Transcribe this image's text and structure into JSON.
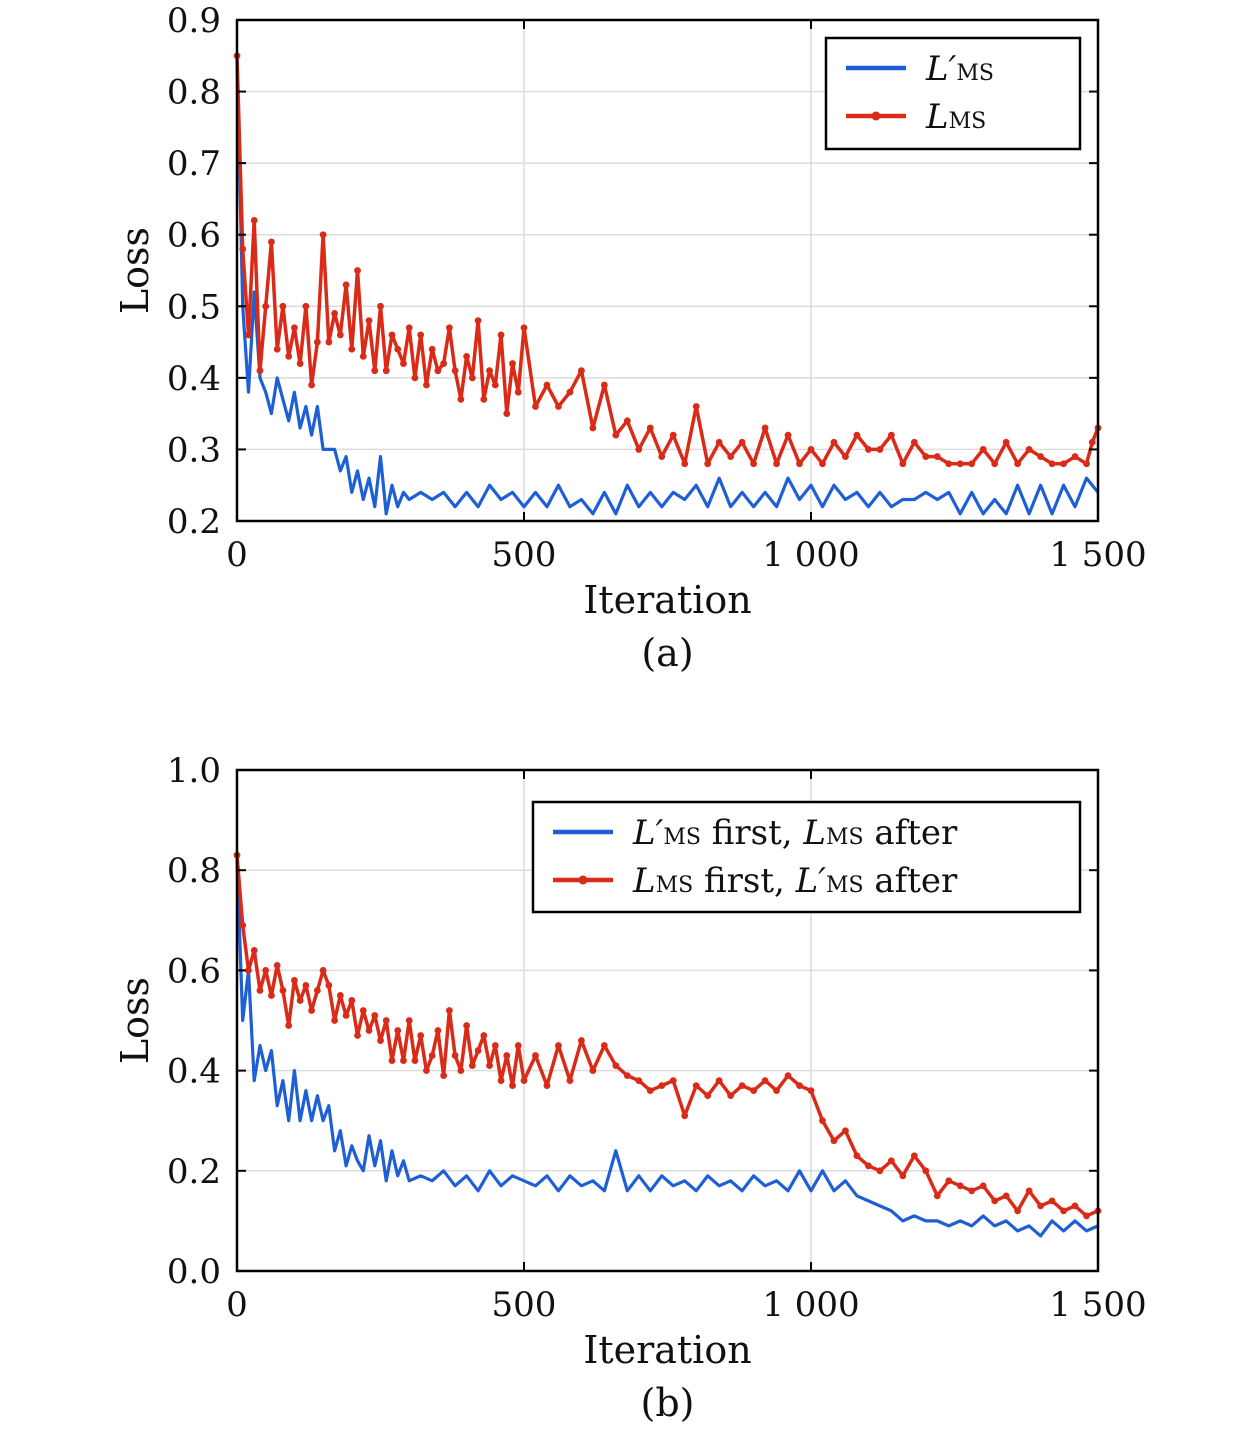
{
  "chart_data": [
    {
      "type": "line",
      "caption": "(a)",
      "xlabel": "Iteration",
      "ylabel": "Loss",
      "xlim": [
        0,
        1500
      ],
      "ylim": [
        0.2,
        0.9
      ],
      "xticks": [
        0,
        500,
        1000,
        1500
      ],
      "xtick_labels": [
        "0",
        "500",
        "1 000",
        "1 500"
      ],
      "yticks": [
        0.2,
        0.3,
        0.4,
        0.5,
        0.6,
        0.7,
        0.8,
        0.9
      ],
      "ytick_labels": [
        "0.2",
        "0.3",
        "0.4",
        "0.5",
        "0.6",
        "0.7",
        "0.8",
        "0.9"
      ],
      "grid": true,
      "legend_position": "top-right",
      "series": [
        {
          "name_main": "L′",
          "name_sub": "MS",
          "name_tail": "",
          "color": "#1f5fd6",
          "markers": false,
          "x": [
            0,
            10,
            20,
            30,
            40,
            50,
            60,
            70,
            80,
            90,
            100,
            110,
            120,
            130,
            140,
            150,
            160,
            170,
            180,
            190,
            200,
            210,
            220,
            230,
            240,
            250,
            260,
            270,
            280,
            290,
            300,
            320,
            340,
            360,
            380,
            400,
            420,
            440,
            460,
            480,
            500,
            520,
            540,
            560,
            580,
            600,
            620,
            640,
            660,
            680,
            700,
            720,
            740,
            760,
            780,
            800,
            820,
            840,
            860,
            880,
            900,
            920,
            940,
            960,
            980,
            1000,
            1020,
            1040,
            1060,
            1080,
            1100,
            1120,
            1140,
            1160,
            1180,
            1200,
            1220,
            1240,
            1260,
            1280,
            1300,
            1320,
            1340,
            1360,
            1380,
            1400,
            1420,
            1440,
            1460,
            1480,
            1500
          ],
          "y": [
            0.85,
            0.5,
            0.38,
            0.52,
            0.4,
            0.38,
            0.35,
            0.4,
            0.37,
            0.34,
            0.38,
            0.33,
            0.36,
            0.32,
            0.36,
            0.3,
            0.3,
            0.3,
            0.27,
            0.29,
            0.24,
            0.27,
            0.23,
            0.26,
            0.22,
            0.29,
            0.21,
            0.25,
            0.22,
            0.24,
            0.23,
            0.24,
            0.23,
            0.24,
            0.22,
            0.24,
            0.22,
            0.25,
            0.23,
            0.24,
            0.22,
            0.24,
            0.22,
            0.25,
            0.22,
            0.23,
            0.21,
            0.24,
            0.21,
            0.25,
            0.22,
            0.24,
            0.22,
            0.24,
            0.23,
            0.25,
            0.22,
            0.26,
            0.22,
            0.24,
            0.22,
            0.24,
            0.22,
            0.26,
            0.23,
            0.25,
            0.22,
            0.25,
            0.23,
            0.24,
            0.22,
            0.24,
            0.22,
            0.23,
            0.23,
            0.24,
            0.23,
            0.24,
            0.21,
            0.24,
            0.21,
            0.23,
            0.21,
            0.25,
            0.21,
            0.25,
            0.21,
            0.25,
            0.22,
            0.26,
            0.24
          ]
        },
        {
          "name_main": "L",
          "name_sub": "MS",
          "name_tail": "",
          "color": "#d92b17",
          "markers": true,
          "x": [
            0,
            10,
            20,
            30,
            40,
            50,
            60,
            70,
            80,
            90,
            100,
            110,
            120,
            130,
            140,
            150,
            160,
            170,
            180,
            190,
            200,
            210,
            220,
            230,
            240,
            250,
            260,
            270,
            280,
            290,
            300,
            310,
            320,
            330,
            340,
            350,
            360,
            370,
            380,
            390,
            400,
            410,
            420,
            430,
            440,
            450,
            460,
            470,
            480,
            490,
            500,
            520,
            540,
            560,
            580,
            600,
            620,
            640,
            660,
            680,
            700,
            720,
            740,
            760,
            780,
            800,
            820,
            840,
            860,
            880,
            900,
            920,
            940,
            960,
            980,
            1000,
            1020,
            1040,
            1060,
            1080,
            1100,
            1120,
            1140,
            1160,
            1180,
            1200,
            1220,
            1240,
            1260,
            1280,
            1300,
            1320,
            1340,
            1360,
            1380,
            1400,
            1420,
            1440,
            1460,
            1480,
            1490,
            1500
          ],
          "y": [
            0.85,
            0.58,
            0.46,
            0.62,
            0.41,
            0.5,
            0.59,
            0.44,
            0.5,
            0.43,
            0.47,
            0.42,
            0.5,
            0.39,
            0.45,
            0.6,
            0.45,
            0.49,
            0.46,
            0.53,
            0.44,
            0.55,
            0.43,
            0.48,
            0.41,
            0.5,
            0.41,
            0.46,
            0.44,
            0.42,
            0.47,
            0.4,
            0.46,
            0.39,
            0.44,
            0.41,
            0.42,
            0.47,
            0.41,
            0.37,
            0.43,
            0.4,
            0.48,
            0.37,
            0.41,
            0.39,
            0.46,
            0.35,
            0.42,
            0.38,
            0.47,
            0.36,
            0.39,
            0.36,
            0.38,
            0.41,
            0.33,
            0.39,
            0.32,
            0.34,
            0.3,
            0.33,
            0.29,
            0.32,
            0.28,
            0.36,
            0.28,
            0.31,
            0.29,
            0.31,
            0.28,
            0.33,
            0.28,
            0.32,
            0.28,
            0.3,
            0.28,
            0.31,
            0.29,
            0.32,
            0.3,
            0.3,
            0.32,
            0.28,
            0.31,
            0.29,
            0.29,
            0.28,
            0.28,
            0.28,
            0.3,
            0.28,
            0.31,
            0.28,
            0.3,
            0.29,
            0.28,
            0.28,
            0.29,
            0.28,
            0.31,
            0.33
          ]
        }
      ]
    },
    {
      "type": "line",
      "caption": "(b)",
      "xlabel": "Iteration",
      "ylabel": "Loss",
      "xlim": [
        0,
        1500
      ],
      "ylim": [
        0.0,
        1.0
      ],
      "xticks": [
        0,
        500,
        1000,
        1500
      ],
      "xtick_labels": [
        "0",
        "500",
        "1 000",
        "1 500"
      ],
      "yticks": [
        0.0,
        0.2,
        0.4,
        0.6,
        0.8,
        1.0
      ],
      "ytick_labels": [
        "0.0",
        "0.2",
        "0.4",
        "0.6",
        "0.8",
        "1.0"
      ],
      "grid": true,
      "legend_position": "top-right",
      "series": [
        {
          "name_main": "L′",
          "name_sub": "MS",
          "name_tail": " first, ",
          "name_main2": "L",
          "name_sub2": "MS",
          "name_tail2": " after",
          "color": "#1f5fd6",
          "markers": false,
          "x": [
            0,
            10,
            20,
            30,
            40,
            50,
            60,
            70,
            80,
            90,
            100,
            110,
            120,
            130,
            140,
            150,
            160,
            170,
            180,
            190,
            200,
            210,
            220,
            230,
            240,
            250,
            260,
            270,
            280,
            290,
            300,
            320,
            340,
            360,
            380,
            400,
            420,
            440,
            460,
            480,
            500,
            520,
            540,
            560,
            580,
            600,
            620,
            640,
            660,
            680,
            700,
            720,
            740,
            760,
            780,
            800,
            820,
            840,
            860,
            880,
            900,
            920,
            940,
            960,
            980,
            1000,
            1020,
            1040,
            1060,
            1080,
            1100,
            1120,
            1140,
            1160,
            1180,
            1200,
            1220,
            1240,
            1260,
            1280,
            1300,
            1320,
            1340,
            1360,
            1380,
            1400,
            1420,
            1440,
            1460,
            1480,
            1500
          ],
          "y": [
            0.82,
            0.5,
            0.6,
            0.38,
            0.45,
            0.4,
            0.44,
            0.33,
            0.38,
            0.3,
            0.4,
            0.3,
            0.36,
            0.3,
            0.35,
            0.3,
            0.33,
            0.24,
            0.28,
            0.21,
            0.25,
            0.22,
            0.2,
            0.27,
            0.21,
            0.26,
            0.18,
            0.24,
            0.19,
            0.22,
            0.18,
            0.19,
            0.18,
            0.2,
            0.17,
            0.19,
            0.16,
            0.2,
            0.17,
            0.19,
            0.18,
            0.17,
            0.19,
            0.16,
            0.19,
            0.17,
            0.18,
            0.16,
            0.24,
            0.16,
            0.19,
            0.16,
            0.19,
            0.17,
            0.18,
            0.16,
            0.19,
            0.17,
            0.18,
            0.16,
            0.19,
            0.17,
            0.18,
            0.16,
            0.2,
            0.16,
            0.2,
            0.16,
            0.18,
            0.15,
            0.14,
            0.13,
            0.12,
            0.1,
            0.11,
            0.1,
            0.1,
            0.09,
            0.1,
            0.09,
            0.11,
            0.09,
            0.1,
            0.08,
            0.09,
            0.07,
            0.1,
            0.08,
            0.1,
            0.08,
            0.09
          ]
        },
        {
          "name_main": "L",
          "name_sub": "MS",
          "name_tail": " first, ",
          "name_main2": "L′",
          "name_sub2": "MS",
          "name_tail2": " after",
          "color": "#d92b17",
          "markers": true,
          "x": [
            0,
            10,
            20,
            30,
            40,
            50,
            60,
            70,
            80,
            90,
            100,
            110,
            120,
            130,
            140,
            150,
            160,
            170,
            180,
            190,
            200,
            210,
            220,
            230,
            240,
            250,
            260,
            270,
            280,
            290,
            300,
            310,
            320,
            330,
            340,
            350,
            360,
            370,
            380,
            390,
            400,
            410,
            420,
            430,
            440,
            450,
            460,
            470,
            480,
            490,
            500,
            520,
            540,
            560,
            580,
            600,
            620,
            640,
            660,
            680,
            700,
            720,
            740,
            760,
            780,
            800,
            820,
            840,
            860,
            880,
            900,
            920,
            940,
            960,
            980,
            1000,
            1020,
            1040,
            1060,
            1080,
            1100,
            1120,
            1140,
            1160,
            1180,
            1200,
            1220,
            1240,
            1260,
            1280,
            1300,
            1320,
            1340,
            1360,
            1380,
            1400,
            1420,
            1440,
            1460,
            1480,
            1500
          ],
          "y": [
            0.83,
            0.69,
            0.6,
            0.64,
            0.56,
            0.6,
            0.55,
            0.61,
            0.56,
            0.49,
            0.58,
            0.54,
            0.57,
            0.52,
            0.56,
            0.6,
            0.57,
            0.5,
            0.55,
            0.51,
            0.54,
            0.47,
            0.52,
            0.48,
            0.51,
            0.46,
            0.5,
            0.42,
            0.48,
            0.42,
            0.5,
            0.42,
            0.47,
            0.4,
            0.43,
            0.48,
            0.39,
            0.52,
            0.43,
            0.4,
            0.49,
            0.41,
            0.44,
            0.47,
            0.41,
            0.45,
            0.38,
            0.43,
            0.37,
            0.45,
            0.38,
            0.43,
            0.37,
            0.45,
            0.38,
            0.46,
            0.4,
            0.45,
            0.41,
            0.39,
            0.38,
            0.36,
            0.37,
            0.38,
            0.31,
            0.37,
            0.35,
            0.38,
            0.35,
            0.37,
            0.36,
            0.38,
            0.36,
            0.39,
            0.37,
            0.36,
            0.3,
            0.26,
            0.28,
            0.23,
            0.21,
            0.2,
            0.22,
            0.19,
            0.23,
            0.2,
            0.15,
            0.18,
            0.17,
            0.16,
            0.17,
            0.14,
            0.15,
            0.12,
            0.16,
            0.13,
            0.14,
            0.12,
            0.13,
            0.11,
            0.12
          ]
        }
      ]
    }
  ]
}
